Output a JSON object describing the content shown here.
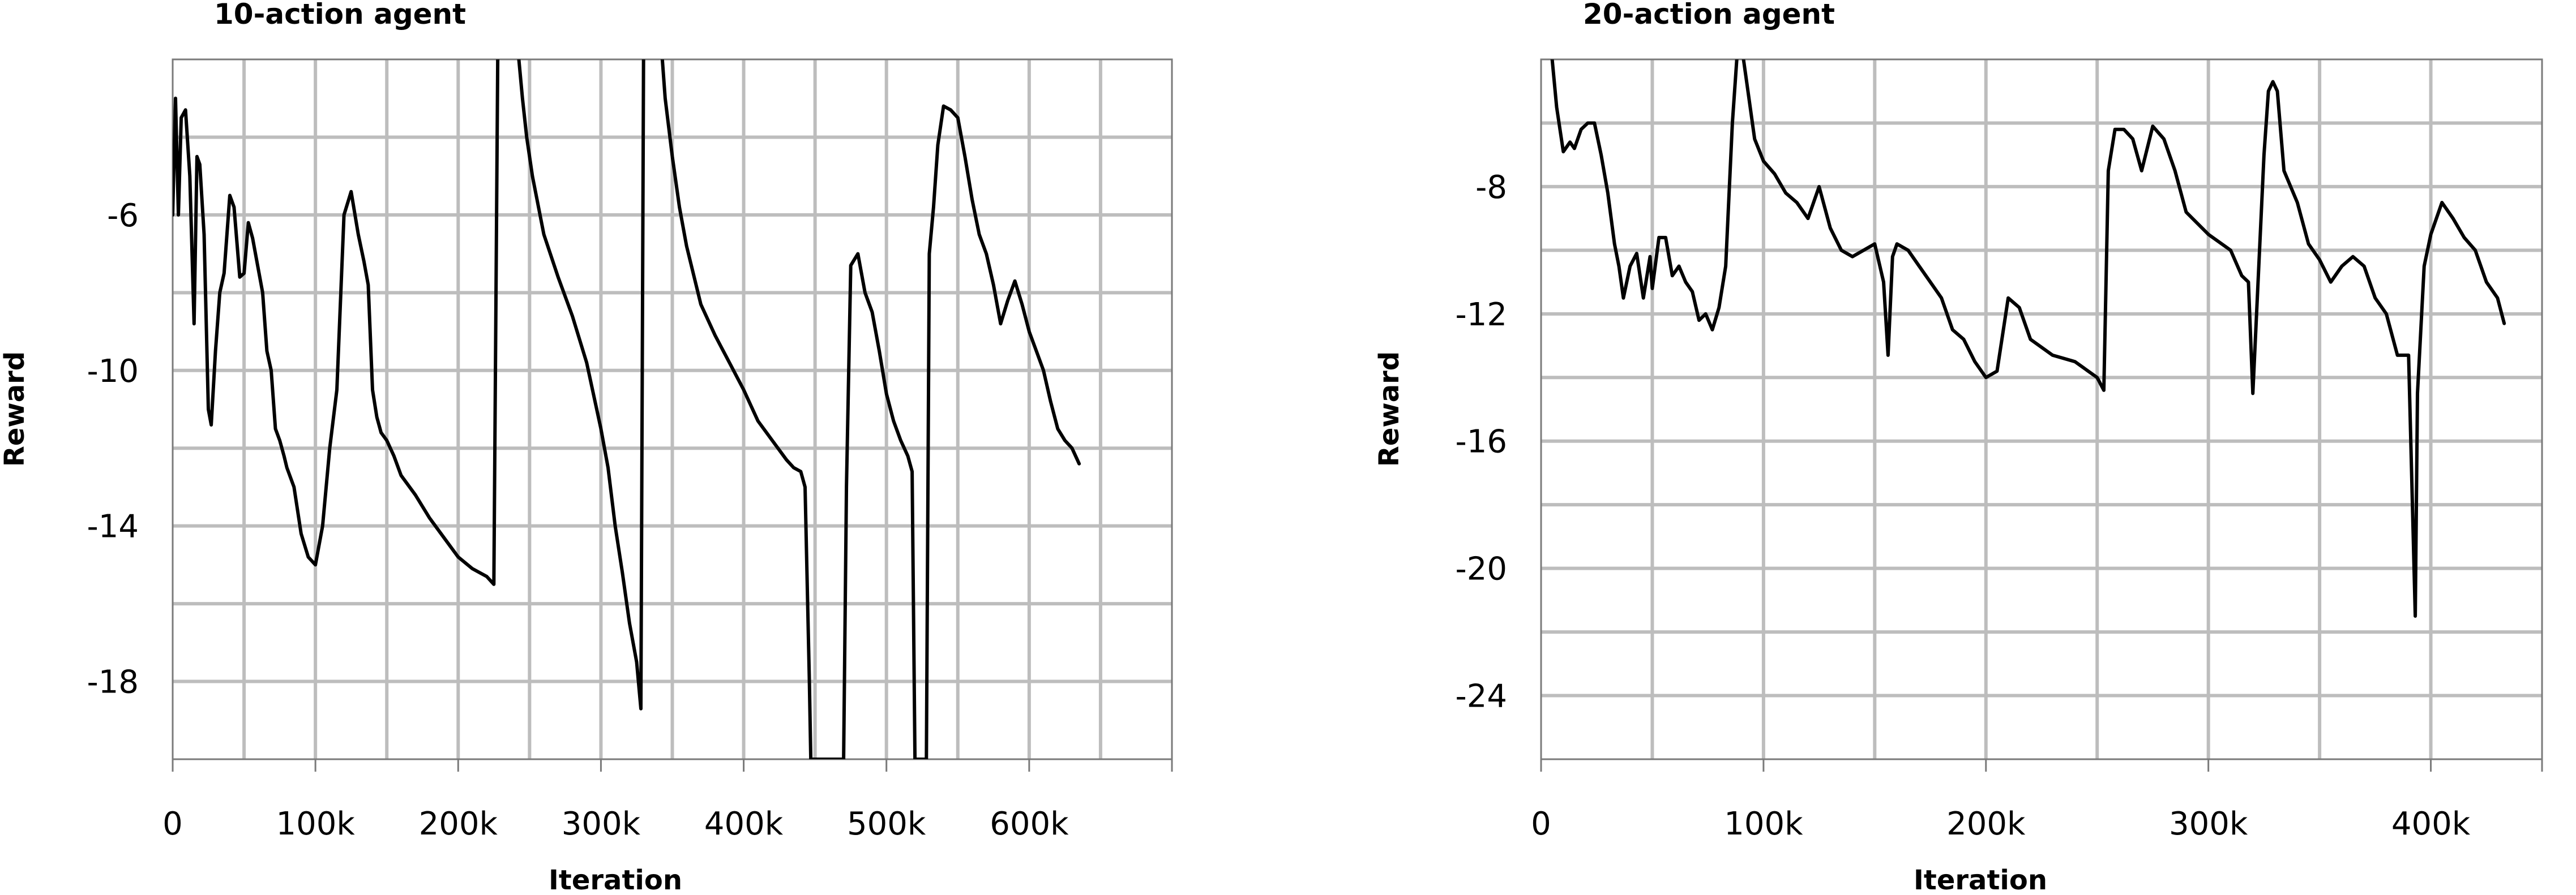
{
  "chart_data": [
    {
      "type": "line",
      "title": "10-action agent",
      "xlabel": "Iteration",
      "ylabel": "Reward",
      "xlim": [
        0,
        700000
      ],
      "ylim": [
        -20,
        -2
      ],
      "x_ticks": [
        0,
        100000,
        200000,
        300000,
        400000,
        500000,
        600000
      ],
      "x_tick_labels": [
        "0",
        "100k",
        "200k",
        "300k",
        "400k",
        "500k",
        "600k"
      ],
      "y_ticks": [
        -6,
        -10,
        -14,
        -18
      ],
      "y_tick_labels": [
        "-6",
        "-10",
        "-14",
        "-18"
      ],
      "grid": true,
      "series": [
        {
          "x": [
            0,
            2000,
            4000,
            6000,
            9000,
            12000,
            15000,
            17000,
            19000,
            22000,
            25000,
            27000,
            30000,
            33000,
            36000,
            40000,
            43000,
            47000,
            50000,
            53000,
            56000,
            60000,
            63000,
            66000,
            69000,
            72000,
            75000,
            78000,
            80000,
            85000,
            90000,
            95000,
            100000,
            105000,
            110000,
            115000,
            120000,
            125000,
            130000,
            134000,
            137000,
            140000,
            143000,
            146000,
            150000,
            155000,
            160000,
            170000,
            180000,
            190000,
            200000,
            210000,
            220000,
            225000,
            228000,
            230000,
            232000,
            235000,
            240000,
            245000,
            248000,
            252000,
            260000,
            270000,
            280000,
            290000,
            300000,
            305000,
            310000,
            315000,
            320000,
            325000,
            328000,
            330000,
            332000,
            340000,
            345000,
            350000,
            355000,
            360000,
            370000,
            380000,
            390000,
            400000,
            410000,
            420000,
            430000,
            435000,
            440000,
            443000,
            446000,
            447000,
            470000,
            472000,
            475000,
            480000,
            485000,
            490000,
            495000,
            500000,
            505000,
            510000,
            515000,
            518000,
            520000,
            522000,
            528000,
            530000,
            533000,
            536000,
            540000,
            545000,
            550000,
            555000,
            560000,
            565000,
            570000,
            575000,
            580000,
            585000,
            590000,
            595000,
            600000,
            605000,
            610000,
            615000,
            620000,
            625000,
            630000,
            635000
          ],
          "values": [
            -6.0,
            -3.0,
            -6.0,
            -3.5,
            -3.3,
            -5.0,
            -8.8,
            -4.5,
            -4.7,
            -6.5,
            -11.0,
            -11.4,
            -9.5,
            -8.0,
            -7.5,
            -5.5,
            -5.8,
            -7.6,
            -7.5,
            -6.2,
            -6.6,
            -7.4,
            -8.0,
            -9.5,
            -10.0,
            -11.5,
            -11.8,
            -12.2,
            -12.5,
            -13.0,
            -14.2,
            -14.8,
            -15.0,
            -14.0,
            -12.0,
            -10.5,
            -6.0,
            -5.4,
            -6.5,
            -7.2,
            -7.8,
            -10.5,
            -11.2,
            -11.6,
            -11.8,
            -12.2,
            -12.7,
            -13.2,
            -13.8,
            -14.3,
            -14.8,
            -15.1,
            -15.3,
            -15.5,
            -0.5,
            -0.5,
            -0.5,
            -0.5,
            -1.0,
            -3.0,
            -4.0,
            -5.0,
            -6.5,
            -7.6,
            -8.6,
            -9.8,
            -11.5,
            -12.5,
            -14.0,
            -15.2,
            -16.5,
            -17.5,
            -18.7,
            -0.5,
            -0.5,
            -0.5,
            -3.0,
            -4.5,
            -5.8,
            -6.8,
            -8.3,
            -9.1,
            -9.8,
            -10.5,
            -11.3,
            -11.8,
            -12.3,
            -12.5,
            -12.6,
            -13.0,
            -18.0,
            -20.0,
            -20.0,
            -13.0,
            -7.3,
            -7.0,
            -8.0,
            -8.5,
            -9.5,
            -10.6,
            -11.3,
            -11.8,
            -12.2,
            -12.6,
            -20.0,
            -20.0,
            -20.0,
            -7.0,
            -5.8,
            -4.2,
            -3.2,
            -3.3,
            -3.5,
            -4.5,
            -5.6,
            -6.5,
            -7.0,
            -7.8,
            -8.8,
            -8.2,
            -7.7,
            -8.3,
            -9.0,
            -9.5,
            -10.0,
            -10.8,
            -11.5,
            -11.8,
            -12.0,
            -12.4
          ]
        }
      ]
    },
    {
      "type": "line",
      "title": "20-action agent",
      "xlabel": "Iteration",
      "ylabel": "Reward",
      "xlim": [
        0,
        450000
      ],
      "ylim": [
        -26,
        -4
      ],
      "x_ticks": [
        0,
        100000,
        200000,
        300000,
        400000
      ],
      "x_tick_labels": [
        "0",
        "100k",
        "200k",
        "300k",
        "400k"
      ],
      "y_ticks": [
        -8,
        -12,
        -16,
        -20,
        -24
      ],
      "y_tick_labels": [
        "-8",
        "-12",
        "-16",
        "-20",
        "-24"
      ],
      "grid": true,
      "series": [
        {
          "x": [
            5000,
            7000,
            10000,
            13000,
            15000,
            18000,
            21000,
            24000,
            27000,
            30000,
            33000,
            35000,
            37000,
            40000,
            43000,
            46000,
            49000,
            50000,
            53000,
            56000,
            59000,
            62000,
            65000,
            68000,
            71000,
            74000,
            77000,
            80000,
            83000,
            86000,
            88000,
            90000,
            92000,
            96000,
            100000,
            105000,
            110000,
            115000,
            120000,
            125000,
            130000,
            135000,
            140000,
            145000,
            150000,
            154000,
            156000,
            158000,
            160000,
            165000,
            170000,
            175000,
            180000,
            185000,
            190000,
            195000,
            200000,
            205000,
            210000,
            215000,
            220000,
            230000,
            240000,
            250000,
            253000,
            255000,
            258000,
            262000,
            266000,
            270000,
            275000,
            280000,
            285000,
            290000,
            300000,
            310000,
            315000,
            318000,
            320000,
            322000,
            325000,
            327000,
            329000,
            331000,
            334000,
            340000,
            345000,
            350000,
            355000,
            360000,
            365000,
            370000,
            375000,
            380000,
            385000,
            390000,
            393000,
            394000,
            397000,
            400000,
            405000,
            410000,
            415000,
            420000,
            425000,
            430000,
            433000
          ],
          "values": [
            -4.0,
            -5.5,
            -6.9,
            -6.6,
            -6.8,
            -6.2,
            -6.0,
            -6.0,
            -7.0,
            -8.2,
            -9.8,
            -10.5,
            -11.5,
            -10.5,
            -10.1,
            -11.5,
            -10.2,
            -11.2,
            -9.6,
            -9.6,
            -10.8,
            -10.5,
            -11.0,
            -11.3,
            -12.2,
            -12.0,
            -12.5,
            -11.8,
            -10.5,
            -6.0,
            -4.0,
            -3.5,
            -4.5,
            -6.5,
            -7.2,
            -7.6,
            -8.2,
            -8.5,
            -9.0,
            -8.0,
            -9.3,
            -10.0,
            -10.2,
            -10.0,
            -9.8,
            -11.0,
            -13.3,
            -10.2,
            -9.8,
            -10.0,
            -10.5,
            -11.0,
            -11.5,
            -12.5,
            -12.8,
            -13.5,
            -14.0,
            -13.8,
            -11.5,
            -11.8,
            -12.8,
            -13.3,
            -13.5,
            -14.0,
            -14.4,
            -7.5,
            -6.2,
            -6.2,
            -6.5,
            -7.5,
            -6.1,
            -6.5,
            -7.5,
            -8.8,
            -9.5,
            -10.0,
            -10.8,
            -11.0,
            -14.5,
            -11.5,
            -7.0,
            -5.0,
            -4.7,
            -5.0,
            -7.5,
            -8.5,
            -9.8,
            -10.3,
            -11.0,
            -10.5,
            -10.2,
            -10.5,
            -11.5,
            -12.0,
            -13.3,
            -13.3,
            -21.5,
            -14.5,
            -10.5,
            -9.5,
            -8.5,
            -9.0,
            -9.6,
            -10.0,
            -11.0,
            -11.5,
            -12.3
          ]
        }
      ]
    }
  ]
}
